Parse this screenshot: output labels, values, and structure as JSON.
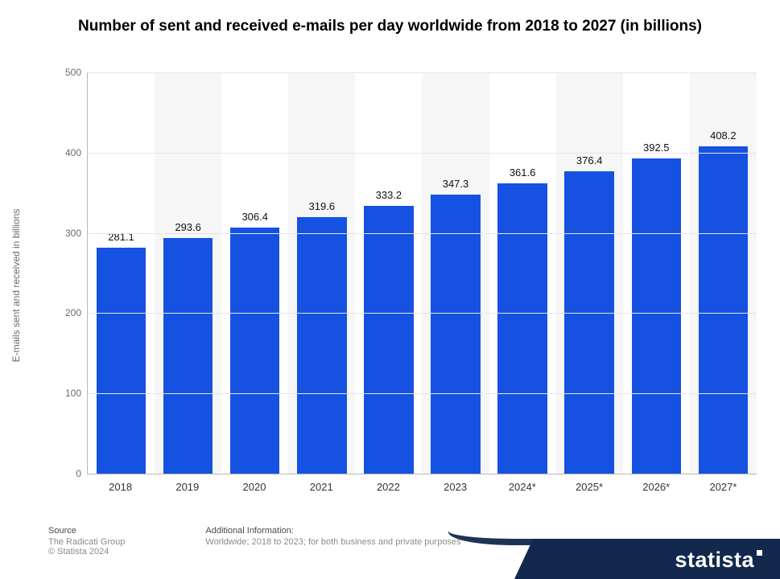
{
  "chart": {
    "type": "bar",
    "title": "Number of sent and received e-mails per day worldwide from 2018 to 2027 (in billions)",
    "title_fontsize": 19,
    "title_color": "#000000",
    "y_axis_label": "E-mails sent and received in billions",
    "y_axis_label_fontsize": 12,
    "y_axis_label_color": "#6b6b6b",
    "ylim": [
      0,
      500
    ],
    "ytick_step": 100,
    "yticks": [
      0,
      100,
      200,
      300,
      400,
      500
    ],
    "grid_color": "#e6e6e6",
    "axis_color": "#b8b8b8",
    "background_color": "#ffffff",
    "alt_band_color": "#f6f6f6",
    "bar_color": "#1552e2",
    "bar_width": 0.74,
    "value_label_fontsize": 13,
    "value_label_color": "#111111",
    "x_tick_fontsize": 13,
    "x_tick_color": "#333333",
    "categories": [
      "2018",
      "2019",
      "2020",
      "2021",
      "2022",
      "2023",
      "2024*",
      "2025*",
      "2026*",
      "2027*"
    ],
    "values": [
      281.1,
      293.6,
      306.4,
      319.6,
      333.2,
      347.3,
      361.6,
      376.4,
      392.5,
      408.2
    ]
  },
  "footer": {
    "source_heading": "Source",
    "source_line1": "The Radicati Group",
    "source_line2": "© Statista 2024",
    "addl_heading": "Additional Information:",
    "addl_line": "Worldwide; 2018 to 2023; for both business and private purposes",
    "text_color": "#8a8a8a",
    "heading_color": "#4a4a4a",
    "fontsize": 11
  },
  "branding": {
    "logo_text": "statista",
    "logo_bg": "#12284c",
    "logo_color": "#ffffff"
  }
}
